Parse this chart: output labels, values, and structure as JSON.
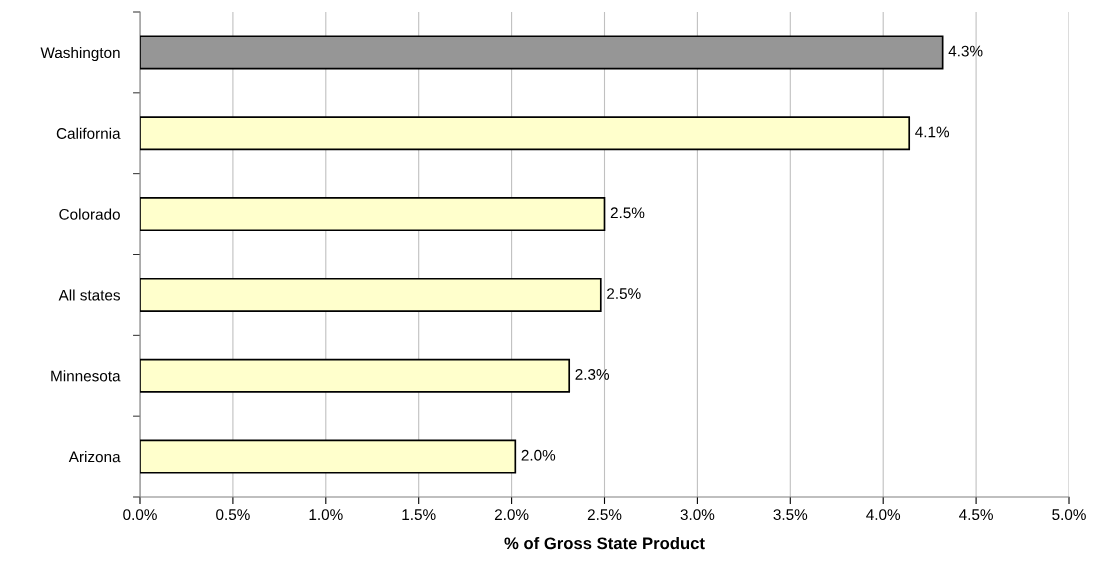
{
  "chart_data": {
    "type": "bar",
    "orientation": "horizontal",
    "xlabel": "% of Gross State Product",
    "categories": [
      "Washington",
      "California",
      "Colorado",
      "All states",
      "Minnesota",
      "Arizona"
    ],
    "values": [
      4.32,
      4.14,
      2.5,
      2.48,
      2.31,
      2.02
    ],
    "value_labels": [
      "4.3%",
      "4.1%",
      "2.5%",
      "2.5%",
      "2.3%",
      "2.0%"
    ],
    "colors": [
      "#969696",
      "#ffffcc",
      "#ffffcc",
      "#ffffcc",
      "#ffffcc",
      "#ffffcc"
    ],
    "xlim": [
      0,
      5
    ],
    "xticks": [
      {
        "value": 0,
        "label": "0.0%"
      },
      {
        "value": 0.5,
        "label": "0.5%"
      },
      {
        "value": 1,
        "label": "1.0%"
      },
      {
        "value": 1.5,
        "label": "1.5%"
      },
      {
        "value": 2,
        "label": "2.0%"
      },
      {
        "value": 2.5,
        "label": "2.5%"
      },
      {
        "value": 3,
        "label": "3.0%"
      },
      {
        "value": 3.5,
        "label": "3.5%"
      },
      {
        "value": 4,
        "label": "4.0%"
      },
      {
        "value": 4.5,
        "label": "4.5%"
      },
      {
        "value": 5,
        "label": "5.0%"
      }
    ],
    "grid": "x"
  }
}
